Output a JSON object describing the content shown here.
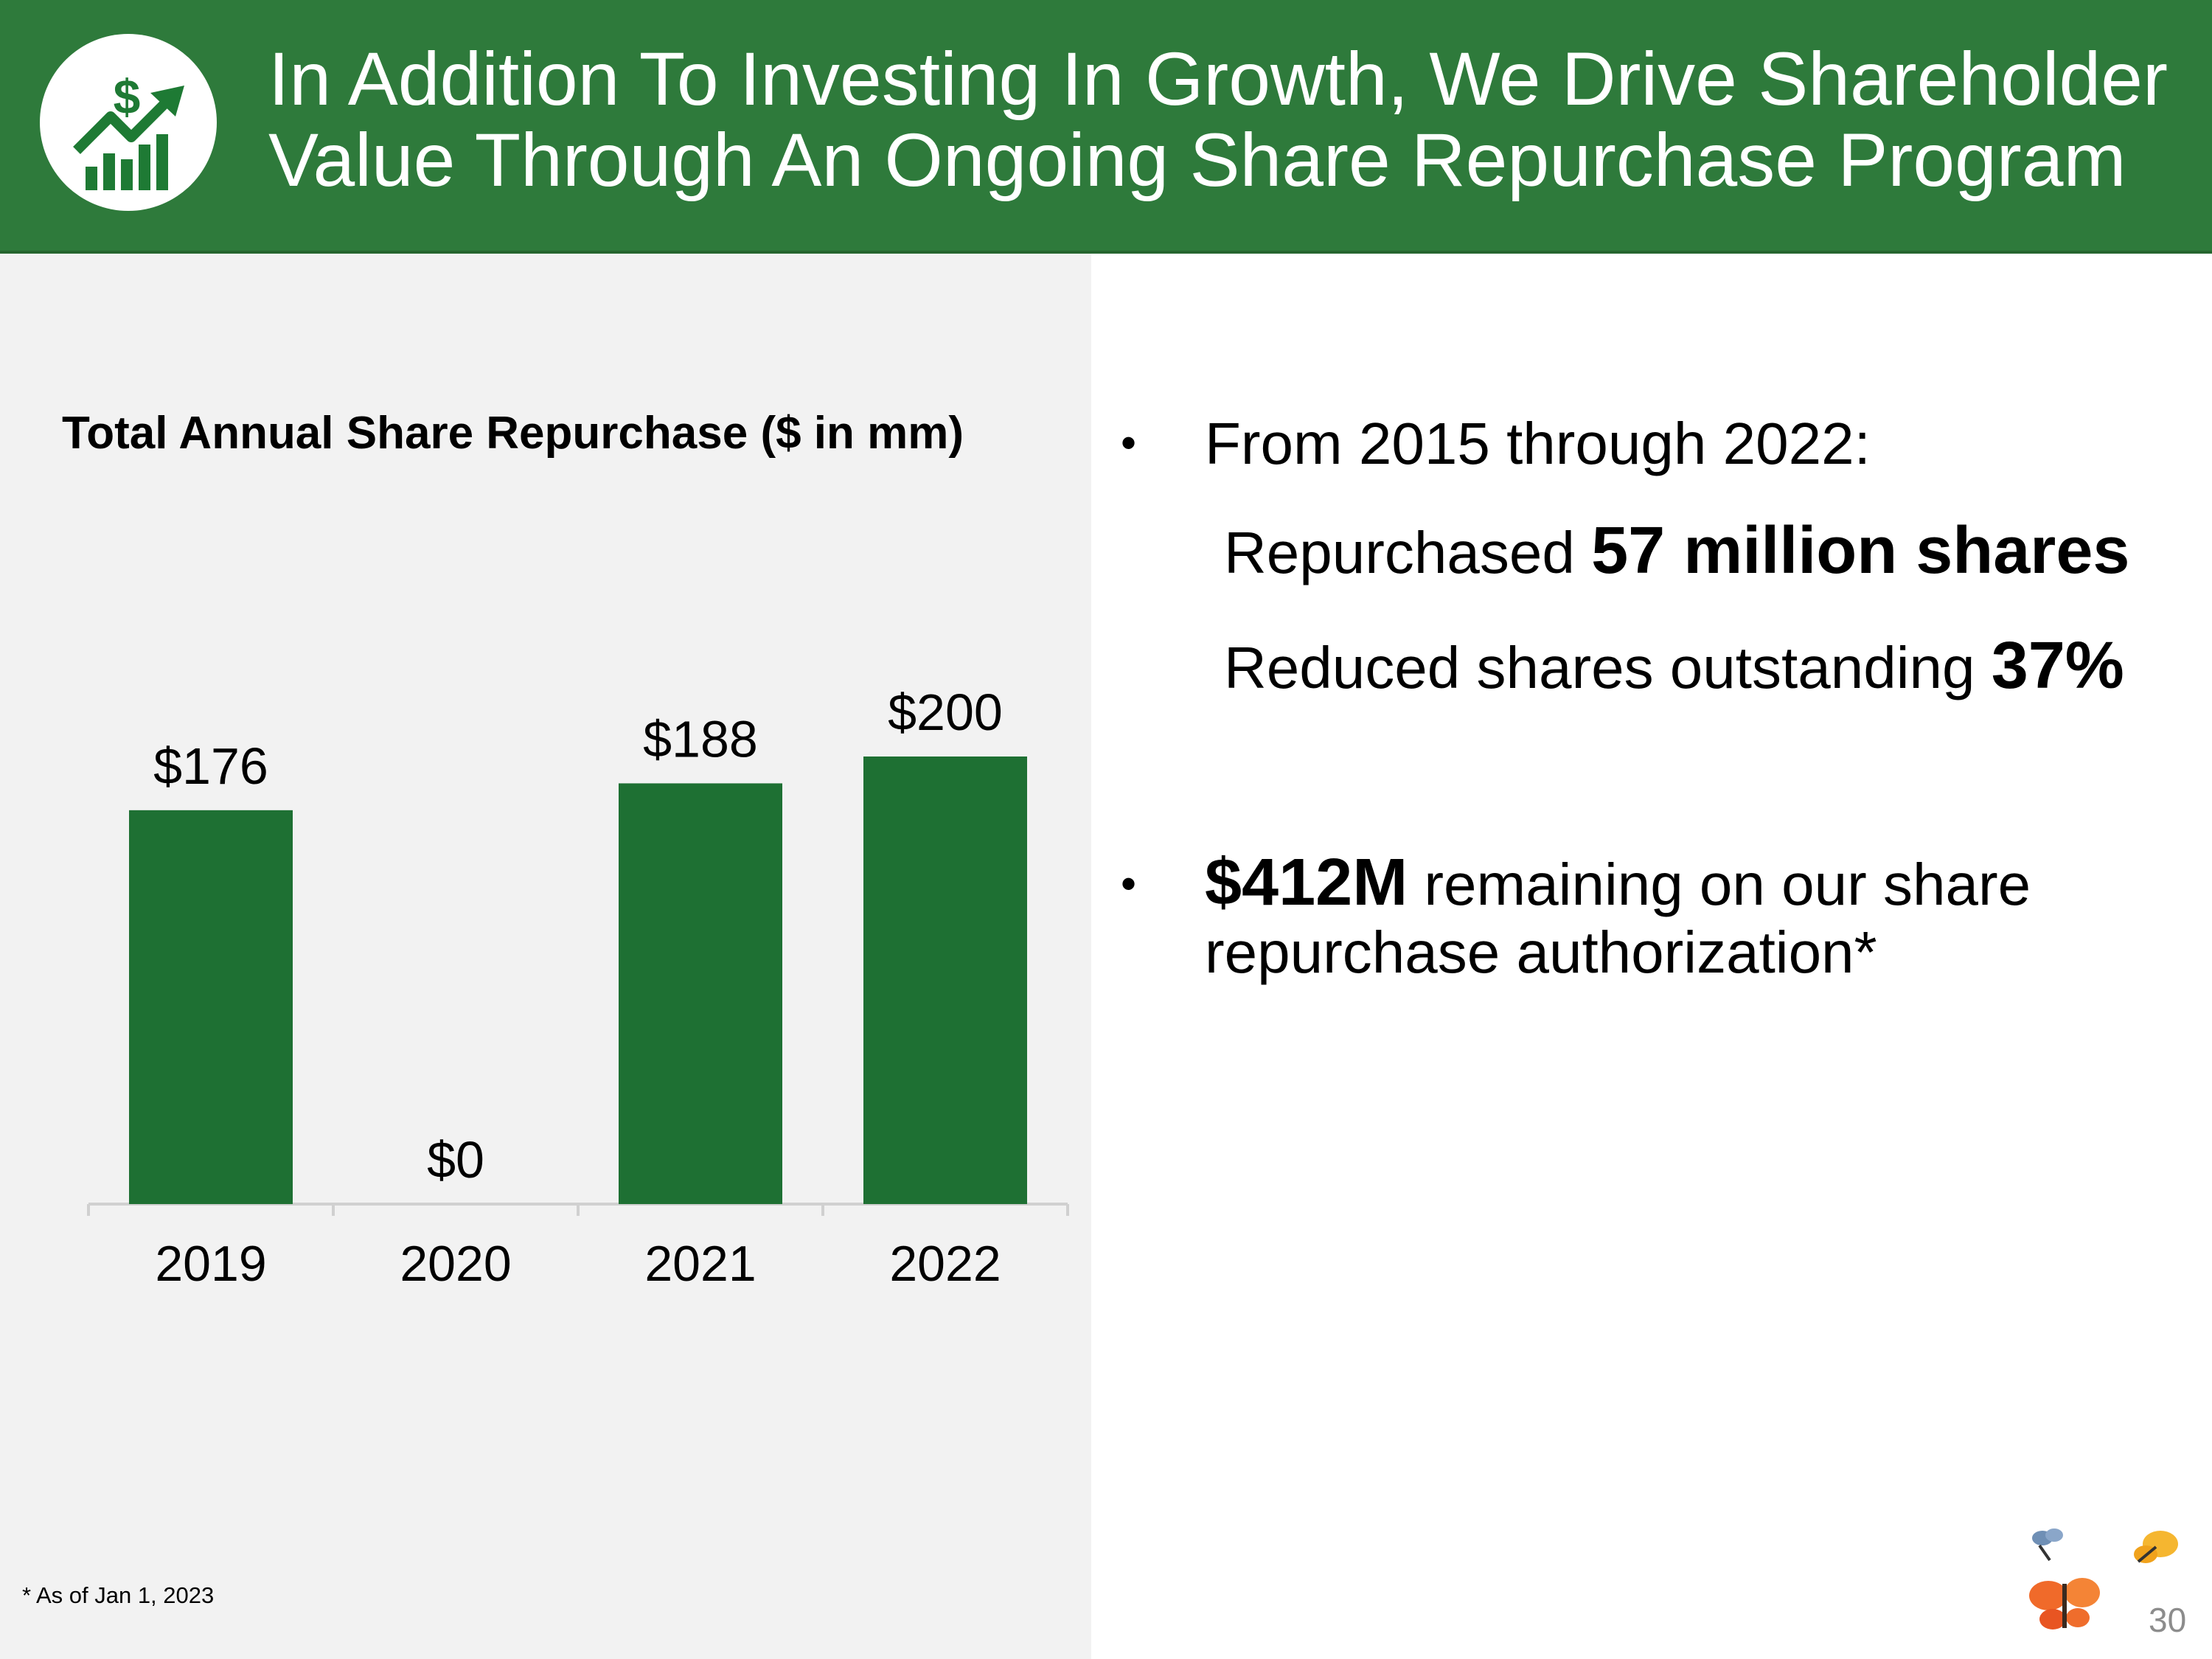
{
  "header": {
    "title_line1": "In Addition To Investing In Growth, We Drive Shareholder",
    "title_line2": "Value Through An Ongoing Share Repurchase Program",
    "logo_icon": "growth-chart-dollar-icon",
    "color": "#2e7a3b"
  },
  "chart_data": {
    "type": "bar",
    "title": "Total Annual Share Repurchase ($ in mm)",
    "categories": [
      "2019",
      "2020",
      "2021",
      "2022"
    ],
    "values": [
      176,
      0,
      188,
      200
    ],
    "value_labels": [
      "$176",
      "$0",
      "$188",
      "$200"
    ],
    "xlabel": "",
    "ylabel": "",
    "ylim": [
      0,
      200
    ],
    "grid": false,
    "bar_color": "#1e7033"
  },
  "right": {
    "bullet1": "From 2015 through 2022:",
    "sub1_prefix": "Repurchased ",
    "sub1_bold": "57 million shares",
    "sub2_prefix": "Reduced shares outstanding ",
    "sub2_bold": "37%",
    "bullet2_bold": "$412M",
    "bullet2_rest": " remaining on our share",
    "bullet2_line2": "repurchase authorization*",
    "bullet_char": "•"
  },
  "footnote": "* As of Jan 1, 2023",
  "page_number": "30",
  "decoration_icon": "butterflies-icon"
}
